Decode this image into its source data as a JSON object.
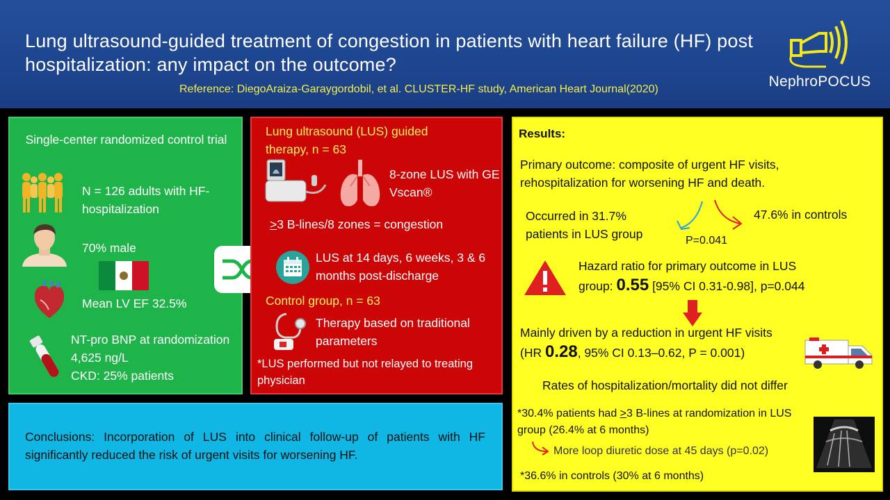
{
  "header": {
    "title": "Lung ultrasound-guided treatment of congestion in patients with heart failure (HF) post hospitalization: any impact on the outcome?",
    "reference": "Reference: DiegoAraiza-Garaygordobil, et al. CLUSTER-HF study, American Heart Journal(2020)",
    "logo_text": "NephroPOCUS"
  },
  "design": {
    "heading": "Single-center randomized control trial",
    "n_text": "N = 126 adults with HF-hospitalization",
    "male_text": "70% male",
    "ef_text": "Mean LV EF 32.5%",
    "bnp_text": "NT-pro BNP at randomization 4,625 ng/L",
    "ckd_text": "CKD: 25% patients"
  },
  "intervention": {
    "lus_heading": "Lung ultrasound (LUS) guided therapy, n = 63",
    "zone_text": "8-zone LUS with GE Vscan®",
    "congestion_prefix": ">",
    "congestion_text": "3 B-lines/8 zones = congestion",
    "schedule_text": "LUS at 14 days, 6 weeks, 3 & 6 months post-discharge",
    "control_heading": "Control group, n = 63",
    "control_text": "Therapy based on traditional parameters",
    "footnote": "*LUS performed but not relayed to treating physician"
  },
  "results": {
    "heading": "Results:",
    "primary": "Primary outcome: composite of urgent HF visits, rehospitalization for worsening HF and death.",
    "lus_rate": "Occurred in 31.7% patients in LUS group",
    "control_rate": "47.6% in controls",
    "p_value": "P=0.041",
    "hr_line1": "Hazard ratio for primary outcome in LUS",
    "hr_pre": "group: ",
    "hr_value": "0.55",
    "hr_post": " [95% CI 0.31-0.98], p=0.044",
    "driven_line1": "Mainly driven by a reduction in urgent HF visits",
    "driven_pre": "(HR ",
    "driven_value": "0.28",
    "driven_post": ", 95% CI 0.13–0.62, P = 0.001)",
    "no_diff": "Rates of hospitalization/mortality did not differ",
    "blines_pre": "*30.4% patients had ",
    "blines_ge": ">",
    "blines_post": "3 B-lines at randomization in LUS group (26.4% at 6 months)",
    "diuretic": "More loop diuretic dose at 45  days (p=0.02)",
    "controls_note": "*36.6% in controls (30% at 6 months)"
  },
  "conclusion": {
    "text": "Conclusions: Incorporation of LUS into clinical follow-up of patients with HF significantly reduced the risk of urgent visits for worsening HF."
  },
  "colors": {
    "header_blue": "#1e4690",
    "green_panel": "#1fb449",
    "red_panel": "#cc0606",
    "yellow_panel": "#ffff24",
    "blue_panel": "#10b7e4",
    "highlight_yellow": "#fff35a"
  },
  "icons": [
    "ultrasound-probe-icon",
    "people-group-icon",
    "man-avatar-icon",
    "mexico-flag-icon",
    "heart-icon",
    "blood-tube-icon",
    "ultrasound-device-icon",
    "lungs-icon",
    "shuffle-icon",
    "calendar-icon",
    "stethoscope-icon",
    "down-arrow-icon",
    "warning-icon",
    "ambulance-icon",
    "ultrasound-image-icon"
  ]
}
